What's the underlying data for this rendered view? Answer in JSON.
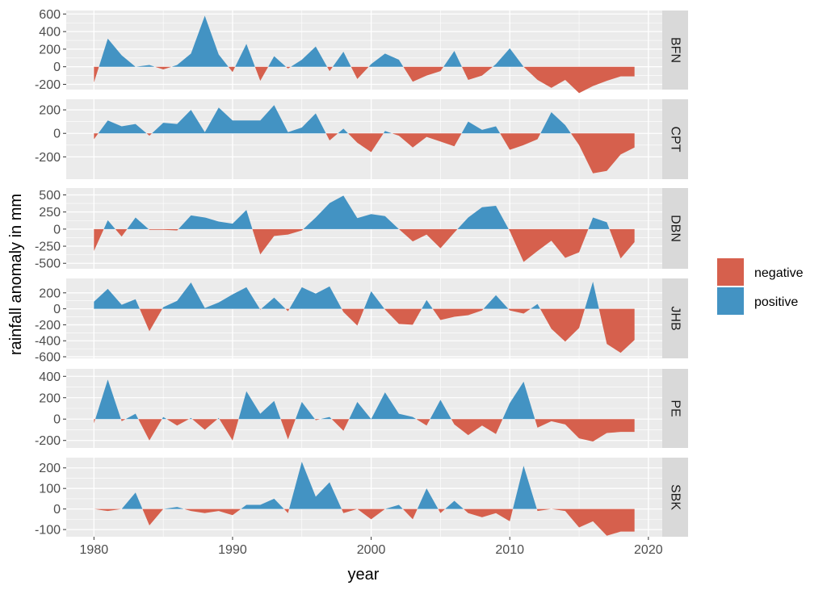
{
  "chart_data": {
    "type": "area",
    "layout": "faceted, stacked vertically, shared x axis",
    "xlabel": "year",
    "ylabel": "rainfall anomaly in mm",
    "xlim": [
      1978,
      2021
    ],
    "x_ticks": [
      1980,
      1990,
      2000,
      2010,
      2020
    ],
    "legend": {
      "placement": "right",
      "entries": [
        {
          "label": "negative",
          "color": "#D6604D"
        },
        {
          "label": "positive",
          "color": "#4393C3"
        }
      ]
    },
    "colors": {
      "negative": "#D6604D",
      "positive": "#4393C3",
      "panel_bg": "#EBEBEB",
      "strip_bg": "#D9D9D9",
      "grid": "#FFFFFF"
    },
    "x": [
      1980,
      1981,
      1982,
      1983,
      1984,
      1985,
      1986,
      1987,
      1988,
      1989,
      1990,
      1991,
      1992,
      1993,
      1994,
      1995,
      1996,
      1997,
      1998,
      1999,
      2000,
      2001,
      2002,
      2003,
      2004,
      2005,
      2006,
      2007,
      2008,
      2009,
      2010,
      2011,
      2012,
      2013,
      2014,
      2015,
      2016,
      2017,
      2018,
      2019
    ],
    "panels": [
      {
        "label": "BFN",
        "ylim": [
          -260,
          640
        ],
        "y_ticks": [
          600,
          400,
          200,
          0,
          -200
        ],
        "y_tick_labels": [
          "600",
          "400",
          "200",
          "0",
          "-200"
        ],
        "values": [
          -180,
          320,
          130,
          0,
          20,
          -30,
          20,
          150,
          580,
          140,
          -60,
          260,
          -160,
          120,
          -20,
          80,
          230,
          -50,
          170,
          -140,
          30,
          150,
          80,
          -170,
          -100,
          -50,
          180,
          -150,
          -100,
          30,
          210,
          0,
          -150,
          -240,
          -150,
          -300,
          -220,
          -160,
          -110,
          -110
        ]
      },
      {
        "label": "CPT",
        "ylim": [
          -390,
          290
        ],
        "y_ticks": [
          200,
          0,
          -200
        ],
        "y_tick_labels": [
          "200",
          "0",
          "-200"
        ],
        "values": [
          -50,
          110,
          60,
          80,
          -20,
          90,
          80,
          200,
          10,
          220,
          110,
          110,
          110,
          240,
          10,
          50,
          170,
          -60,
          40,
          -80,
          -160,
          20,
          -20,
          -120,
          -30,
          -70,
          -110,
          100,
          30,
          60,
          -140,
          -100,
          -50,
          180,
          70,
          -100,
          -340,
          -320,
          -180,
          -120
        ]
      },
      {
        "label": "DBN",
        "ylim": [
          -580,
          600
        ],
        "y_ticks": [
          500,
          250,
          0,
          -250,
          -500
        ],
        "y_tick_labels": [
          "500",
          "250",
          "0",
          "-250",
          "-500"
        ],
        "values": [
          -320,
          130,
          -110,
          170,
          -10,
          -10,
          -20,
          200,
          170,
          110,
          80,
          280,
          -370,
          -100,
          -80,
          -20,
          170,
          380,
          490,
          160,
          220,
          190,
          0,
          -180,
          -80,
          -280,
          -50,
          170,
          320,
          340,
          -30,
          -480,
          -320,
          -170,
          -420,
          -340,
          170,
          100,
          -430,
          -190
        ]
      },
      {
        "label": "JHB",
        "ylim": [
          -620,
          380
        ],
        "y_ticks": [
          200,
          0,
          -200,
          -400,
          -600
        ],
        "y_tick_labels": [
          "200",
          "0",
          "-200",
          "-400",
          "-600"
        ],
        "values": [
          90,
          250,
          50,
          120,
          -280,
          20,
          100,
          330,
          10,
          80,
          180,
          270,
          -10,
          140,
          -30,
          270,
          190,
          280,
          -40,
          -210,
          220,
          -10,
          -190,
          -200,
          110,
          -140,
          -100,
          -80,
          -20,
          170,
          -20,
          -60,
          60,
          -250,
          -410,
          -240,
          340,
          -440,
          -550,
          -390
        ]
      },
      {
        "label": "PE",
        "ylim": [
          -270,
          470
        ],
        "y_ticks": [
          400,
          200,
          0,
          -200
        ],
        "y_tick_labels": [
          "400",
          "200",
          "0",
          "-200"
        ],
        "values": [
          -40,
          370,
          -20,
          50,
          -200,
          20,
          -60,
          10,
          -100,
          10,
          -200,
          260,
          50,
          170,
          -190,
          160,
          -10,
          20,
          -110,
          160,
          0,
          250,
          50,
          20,
          -60,
          180,
          -50,
          -150,
          -60,
          -140,
          150,
          350,
          -80,
          -20,
          -50,
          -180,
          -210,
          -130,
          -120,
          -120
        ]
      },
      {
        "label": "SBK",
        "ylim": [
          -135,
          250
        ],
        "y_ticks": [
          200,
          100,
          0,
          -100
        ],
        "y_tick_labels": [
          "200",
          "100",
          "0",
          "-100"
        ],
        "values": [
          0,
          -10,
          0,
          80,
          -80,
          0,
          10,
          -10,
          -20,
          -10,
          -30,
          20,
          20,
          50,
          -20,
          230,
          60,
          130,
          -20,
          0,
          -50,
          0,
          20,
          -50,
          100,
          -20,
          40,
          -20,
          -40,
          -20,
          -60,
          210,
          -10,
          0,
          -10,
          -90,
          -60,
          -130,
          -110,
          -110
        ]
      }
    ]
  }
}
